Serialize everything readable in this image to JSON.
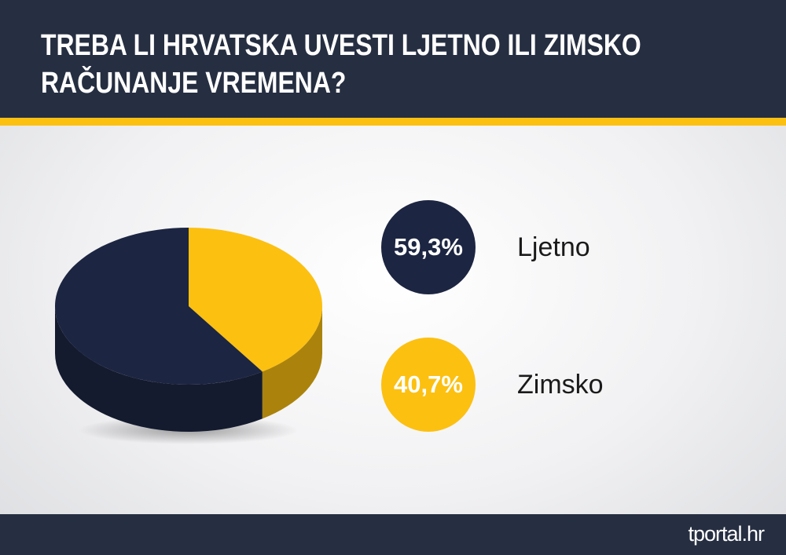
{
  "chart_data": {
    "type": "pie",
    "title": "TREBA LI HRVATSKA UVESTI LJETNO ILI ZIMSKO RAČUNANJE VREMENA?",
    "categories": [
      "Ljetno",
      "Zimsko"
    ],
    "values": [
      59.3,
      40.7
    ],
    "value_labels": [
      "59,3%",
      "40,7%"
    ],
    "colors": [
      "#1c2541",
      "#fcc011"
    ],
    "source": "tportal.hr"
  }
}
